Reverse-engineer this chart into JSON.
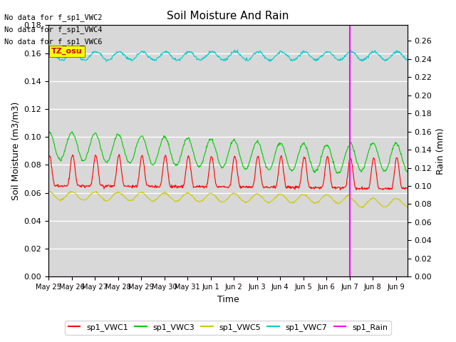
{
  "title": "Soil Moisture And Rain",
  "ylabel_left": "Soil Moisture (m3/m3)",
  "ylabel_right": "Rain (mm)",
  "xlabel": "Time",
  "ylim_left": [
    0.0,
    0.18
  ],
  "ylim_right": [
    0.0,
    0.2772
  ],
  "no_data_texts": [
    "No data for f_sp1_VWC2",
    "No data for f_sp1_VWC4",
    "No data for f_sp1_VWC6"
  ],
  "tz_label": "TZ_osu",
  "tz_bg": "#ffff00",
  "tz_fg": "#cc0000",
  "bg_color": "#d8d8d8",
  "vline_x_day": 13.0,
  "vline_color": "magenta",
  "colors": {
    "VWC1": "#ff0000",
    "VWC3": "#00cc00",
    "VWC5": "#cccc00",
    "VWC7": "#00cccc",
    "Rain": "magenta"
  },
  "legend_labels": [
    "sp1_VWC1",
    "sp1_VWC3",
    "sp1_VWC5",
    "sp1_VWC7",
    "sp1_Rain"
  ],
  "x_tick_labels": [
    "May 25",
    "May 26",
    "May 27",
    "May 28",
    "May 29",
    "May 30",
    "May 31",
    "Jun 1",
    "Jun 2",
    "Jun 3",
    "Jun 4",
    "Jun 5",
    "Jun 6",
    "Jun 7",
    "Jun 8",
    "Jun 9"
  ],
  "n_days": 15.5,
  "n_points": 744,
  "figsize": [
    6.4,
    4.8
  ],
  "dpi": 100
}
